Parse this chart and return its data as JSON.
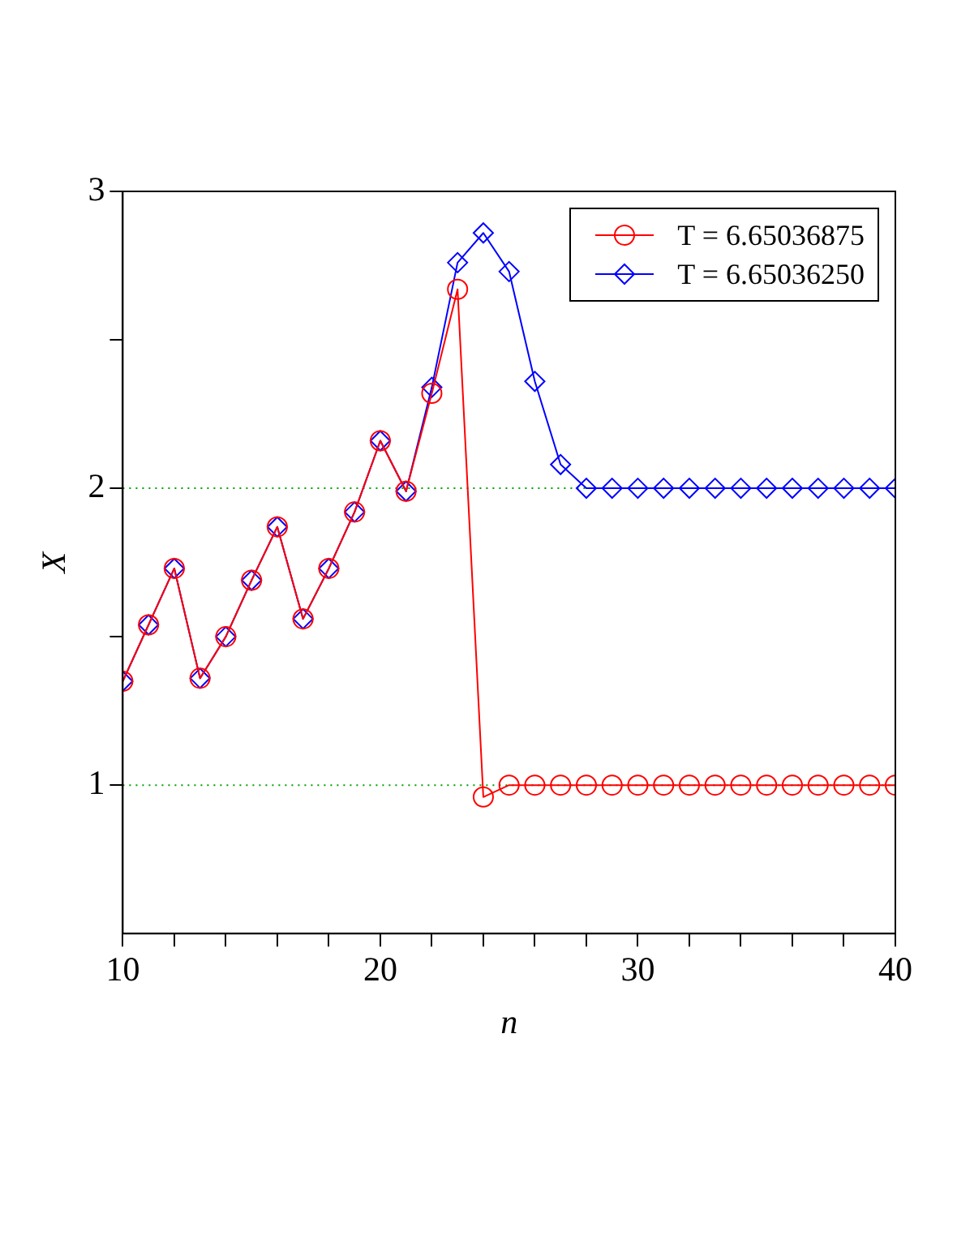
{
  "chart_data": {
    "type": "line",
    "xlabel": "n",
    "ylabel": "X",
    "xlim": [
      10,
      40
    ],
    "ylim": [
      0.5,
      3
    ],
    "xticks": [
      10,
      {
        "value": 12,
        "label": null
      },
      {
        "value": 14,
        "label": null
      },
      {
        "value": 16,
        "label": null
      },
      {
        "value": 18,
        "label": null
      },
      20,
      {
        "value": 22,
        "label": null
      },
      {
        "value": 24,
        "label": null
      },
      {
        "value": 26,
        "label": null
      },
      {
        "value": 28,
        "label": null
      },
      30,
      {
        "value": 32,
        "label": null
      },
      {
        "value": 34,
        "label": null
      },
      {
        "value": 36,
        "label": null
      },
      {
        "value": 38,
        "label": null
      },
      40
    ],
    "yticks": [
      1,
      {
        "value": 1.5,
        "label": null
      },
      2,
      {
        "value": 2.5,
        "label": null
      },
      3
    ],
    "x": [
      10,
      11,
      12,
      13,
      14,
      15,
      16,
      17,
      18,
      19,
      20,
      21,
      22,
      23,
      24,
      25,
      26,
      27,
      28,
      29,
      30,
      31,
      32,
      33,
      34,
      35,
      36,
      37,
      38,
      39,
      40
    ],
    "series": [
      {
        "name": "T = 6.65036875",
        "color": "#ff0000",
        "marker": "circle",
        "values": [
          1.35,
          1.54,
          1.73,
          1.36,
          1.5,
          1.69,
          1.87,
          1.56,
          1.73,
          1.92,
          2.16,
          1.99,
          2.32,
          2.67,
          0.96,
          1.0,
          1.0,
          1.0,
          1.0,
          1.0,
          1.0,
          1.0,
          1.0,
          1.0,
          1.0,
          1.0,
          1.0,
          1.0,
          1.0,
          1.0,
          1.0
        ]
      },
      {
        "name": "T = 6.65036250",
        "color": "#0000ff",
        "marker": "diamond",
        "values": [
          1.35,
          1.54,
          1.73,
          1.36,
          1.5,
          1.69,
          1.87,
          1.56,
          1.73,
          1.92,
          2.16,
          1.99,
          2.34,
          2.76,
          2.86,
          2.73,
          2.36,
          2.08,
          2.0,
          2.0,
          2.0,
          2.0,
          2.0,
          2.0,
          2.0,
          2.0,
          2.0,
          2.0,
          2.0,
          2.0,
          2.0
        ]
      }
    ],
    "ref_lines": [
      {
        "axis": "y",
        "value": 2,
        "color": "#00a000",
        "line_style": "dotted"
      },
      {
        "axis": "y",
        "value": 1,
        "color": "#00a000",
        "line_style": "dotted"
      }
    ],
    "legend": "top right",
    "grid": false,
    "line_style": "solid"
  }
}
